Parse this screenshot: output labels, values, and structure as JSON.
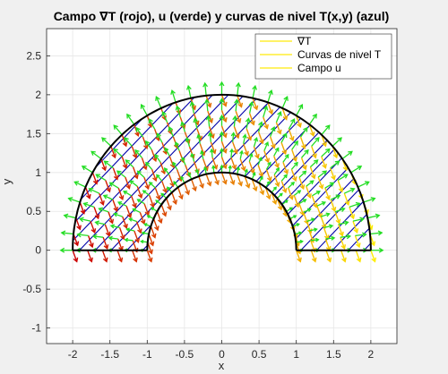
{
  "chart_data": {
    "type": "vector-field",
    "title": "Campo ∇T (rojo), u (verde) y curvas de nivel T(x,y) (azul)",
    "xlabel": "x",
    "ylabel": "y",
    "xlim": [
      -2.35,
      2.35
    ],
    "ylim": [
      -1.2,
      2.85
    ],
    "xticks": [
      -2,
      -1.5,
      -1,
      -0.5,
      0,
      0.5,
      1,
      1.5,
      2
    ],
    "xtick_labels": [
      "-2",
      "-1.5",
      "-1",
      "-0.5",
      "0",
      "0.5",
      "1",
      "1.5",
      "2"
    ],
    "yticks": [
      -1,
      -0.5,
      0,
      0.5,
      1,
      1.5,
      2,
      2.5
    ],
    "ytick_labels": [
      "-1",
      "-0.5",
      "0",
      "0.5",
      "1",
      "1.5",
      "2",
      "2.5"
    ],
    "grid": true,
    "legend_position": "top-right",
    "domain": {
      "shape": "half-annulus",
      "inner_radius": 1,
      "outer_radius": 2,
      "theta_range_deg": [
        0,
        180
      ]
    },
    "series": [
      {
        "name": "∇T",
        "kind": "quiver",
        "color_start": "#cc0000",
        "color_end": "#ffee00",
        "legend_color": "#ffee33"
      },
      {
        "name": "Curvas de nivel T",
        "kind": "contour",
        "color": "#0000aa",
        "legend_color": "#ffee33"
      },
      {
        "name": "Campo u",
        "kind": "quiver",
        "color": "#22dd22",
        "legend_color": "#ffee33"
      }
    ],
    "boundary_color": "#000000"
  }
}
